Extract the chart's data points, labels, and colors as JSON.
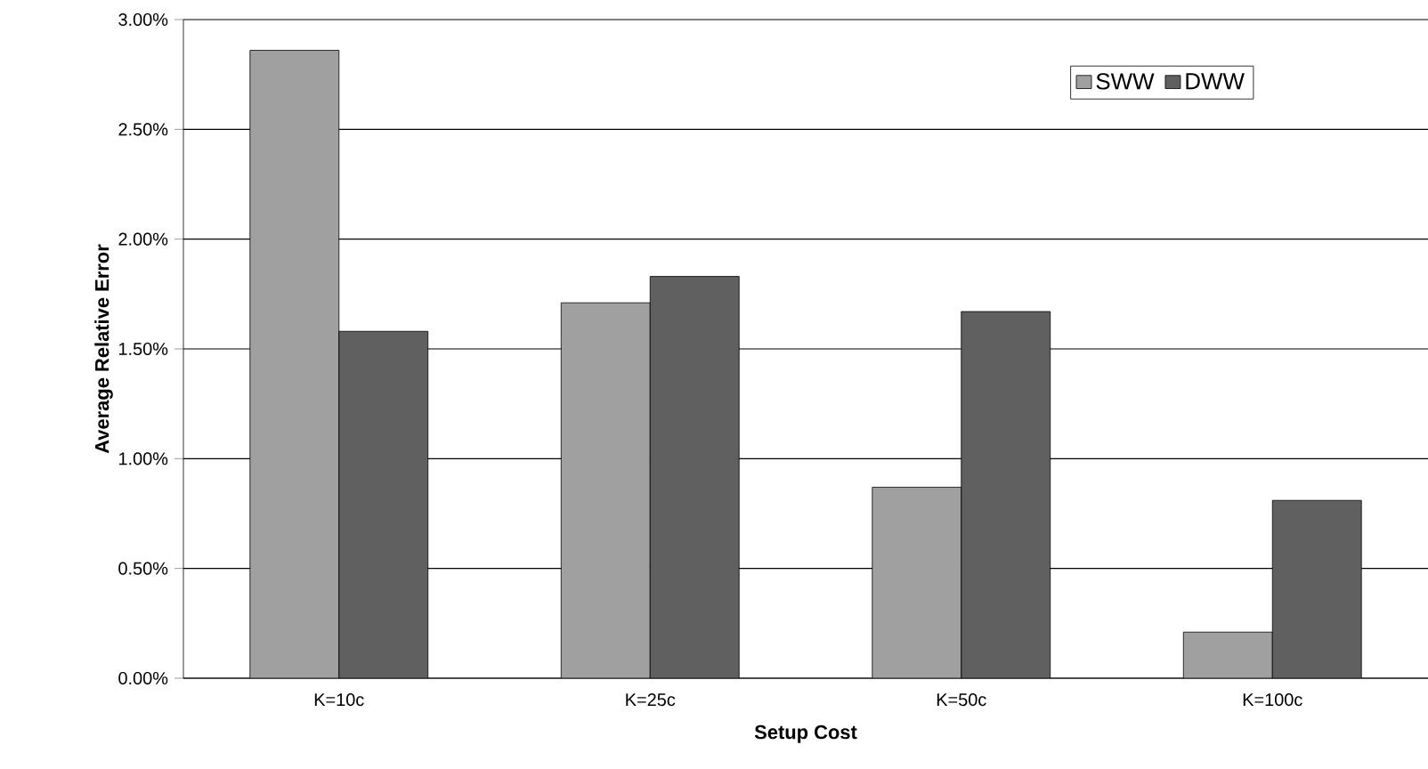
{
  "chart_data": {
    "type": "bar",
    "xlabel": "Setup Cost",
    "ylabel": "Average Relative Error",
    "categories": [
      "K=10c",
      "K=25c",
      "K=50c",
      "K=100c"
    ],
    "series": [
      {
        "name": "SWW",
        "color": "#a0a0a0",
        "values": [
          2.86,
          1.71,
          0.87,
          0.21
        ]
      },
      {
        "name": "DWW",
        "color": "#606060",
        "values": [
          1.58,
          1.83,
          1.67,
          0.81
        ]
      }
    ],
    "ylim": [
      0,
      3
    ],
    "yticks": [
      {
        "value": 0,
        "label": "0.00%"
      },
      {
        "value": 0.5,
        "label": "0.50%"
      },
      {
        "value": 1,
        "label": "1.00%"
      },
      {
        "value": 1.5,
        "label": "1.50%"
      },
      {
        "value": 2,
        "label": "2.00%"
      },
      {
        "value": 2.5,
        "label": "2.50%"
      },
      {
        "value": 3,
        "label": "3.00%"
      }
    ],
    "grid": "y",
    "legend": "top right"
  }
}
